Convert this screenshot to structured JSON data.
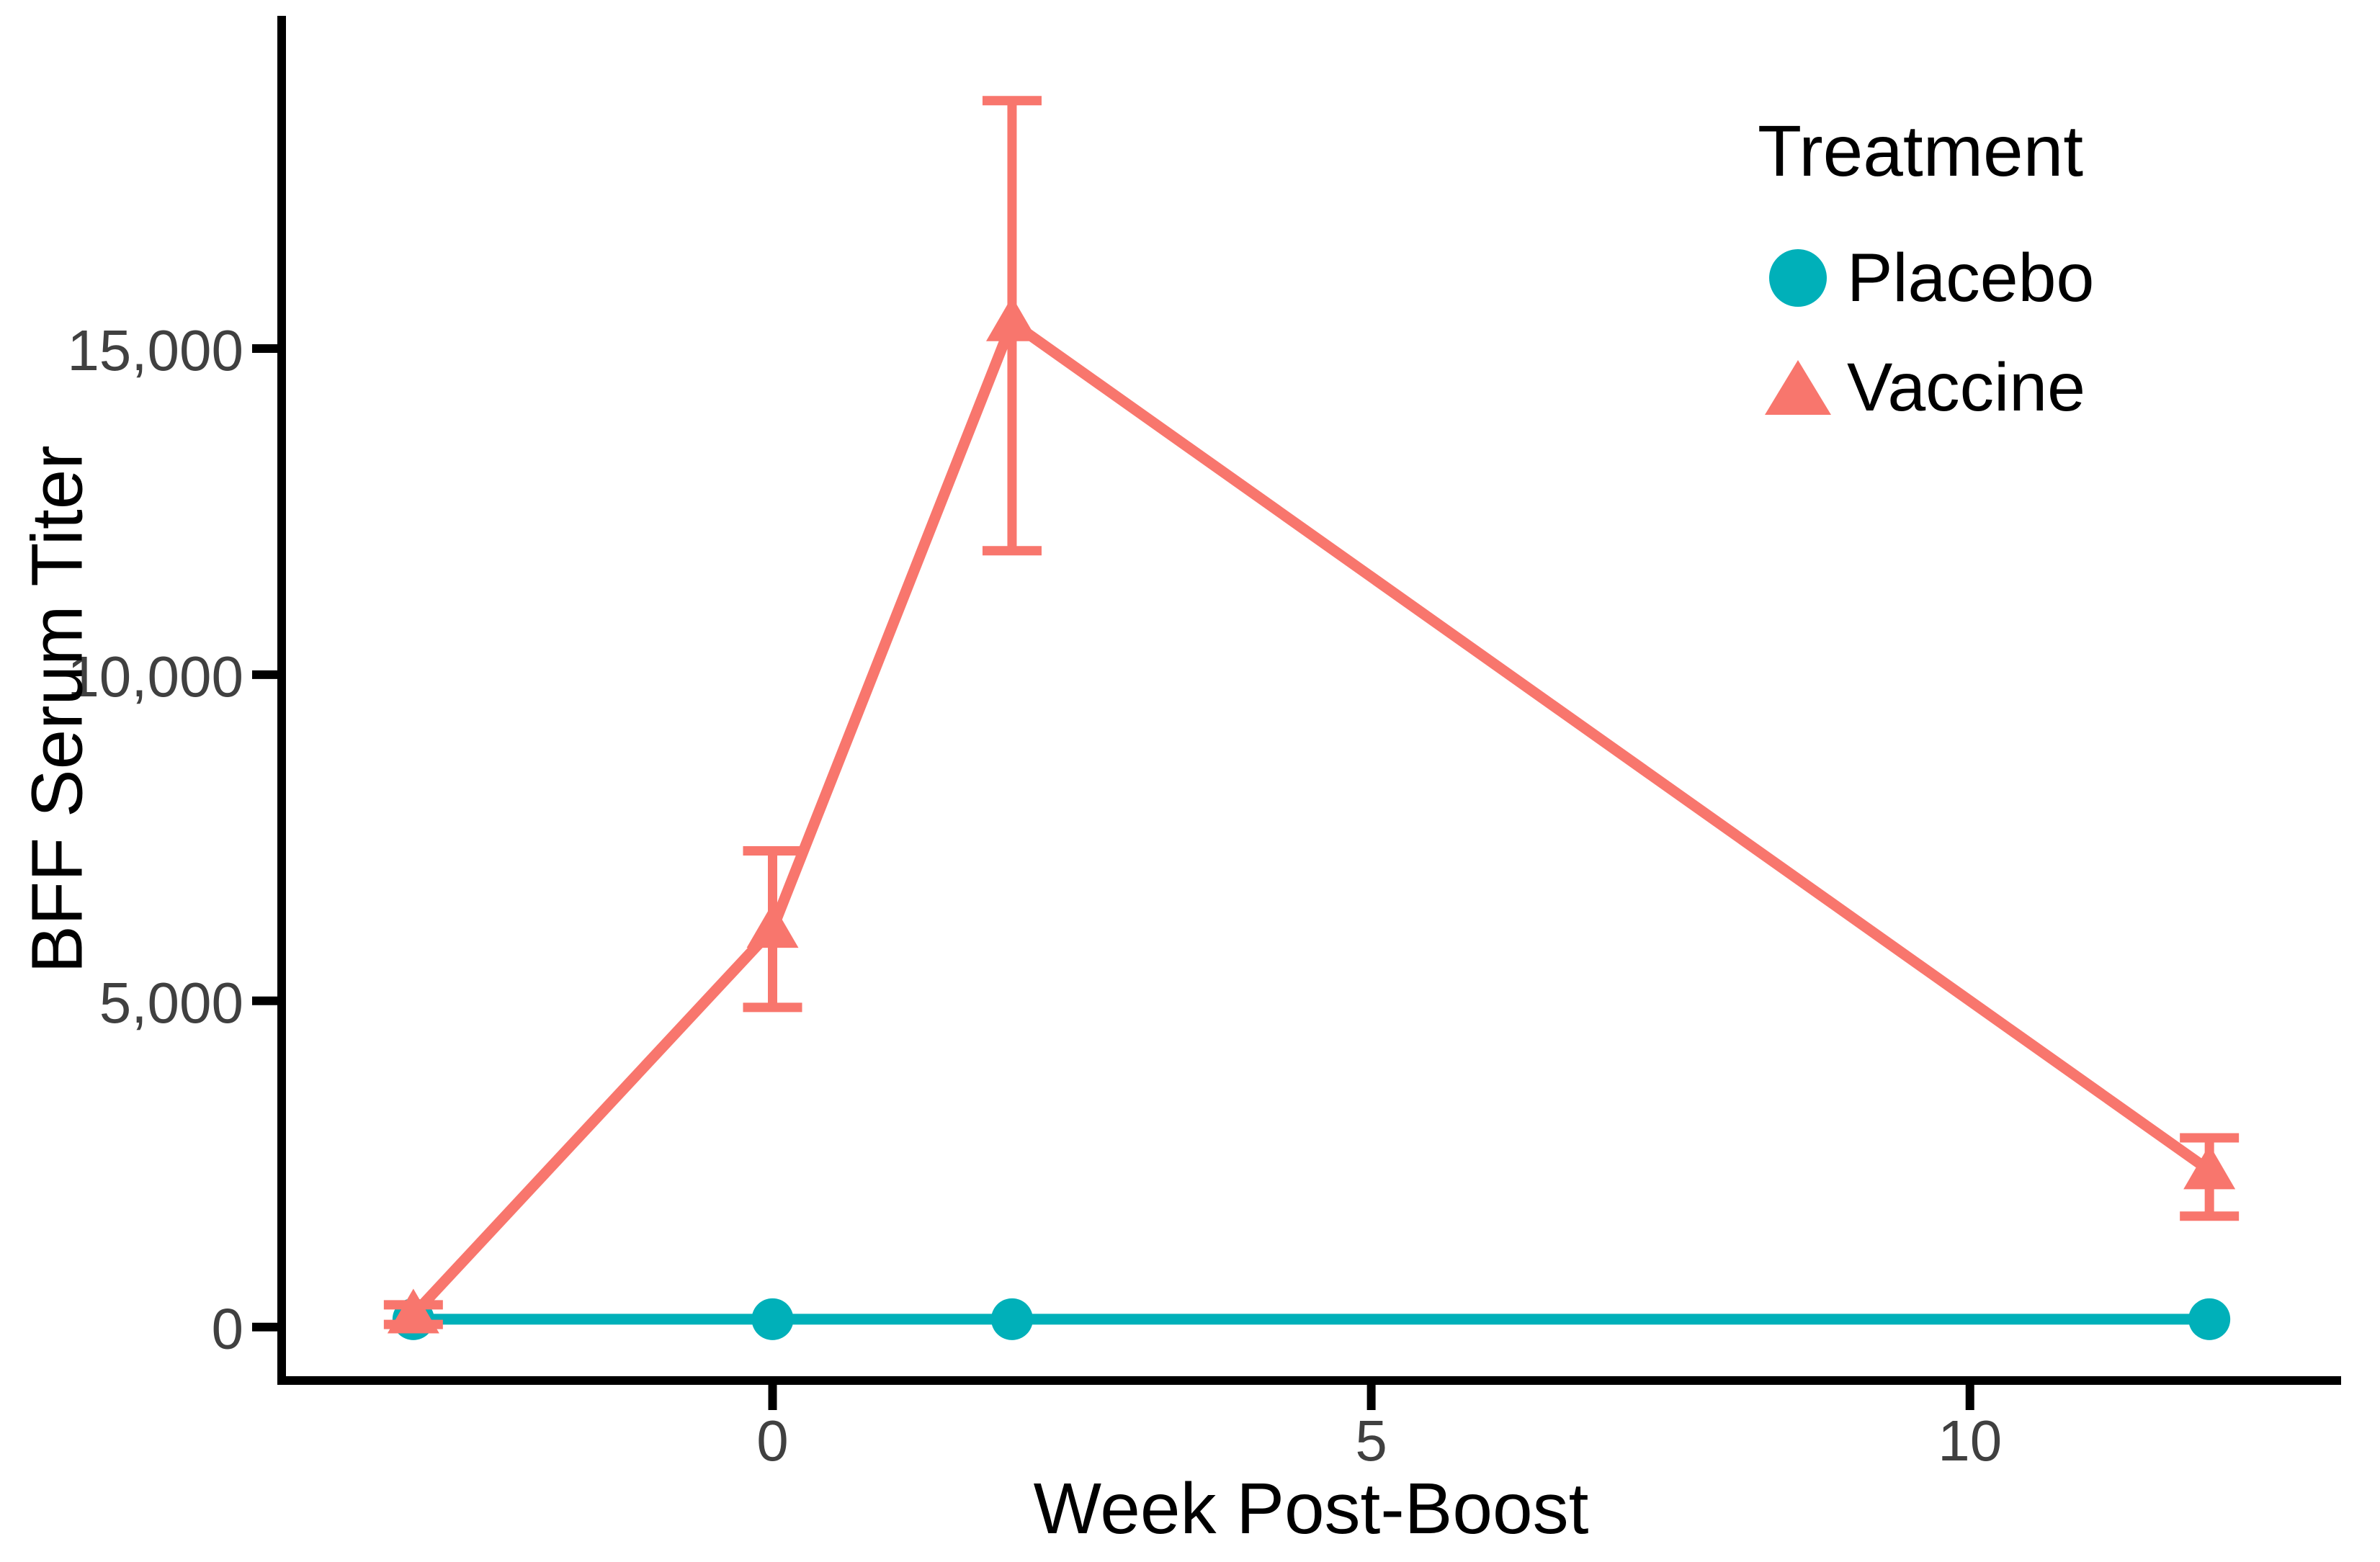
{
  "figure": {
    "background": "#ffffff",
    "axis_color": "#000000",
    "tick_label_color": "#404040"
  },
  "chart_data": {
    "type": "line",
    "title": "",
    "xlabel": "Week Post-Boost",
    "ylabel": "BFF Serum Titer",
    "grid": false,
    "xlim": [
      -4.1,
      13.1
    ],
    "ylim": [
      -820,
      20100
    ],
    "x_ticks": [
      {
        "value": 0,
        "label": "0"
      },
      {
        "value": 5,
        "label": "5"
      },
      {
        "value": 10,
        "label": "10"
      }
    ],
    "y_ticks": [
      {
        "value": 0,
        "label": "0"
      },
      {
        "value": 5000,
        "label": "5,000"
      },
      {
        "value": 10000,
        "label": "10,000"
      },
      {
        "value": 15000,
        "label": "15,000"
      }
    ],
    "legend": {
      "title": "Treatment",
      "position": "top-right"
    },
    "series": [
      {
        "name": "Placebo",
        "color": "#00B0B9",
        "marker": "circle",
        "x": [
          -3,
          0,
          2,
          12
        ],
        "y": [
          120,
          120,
          120,
          120
        ]
      },
      {
        "name": "Vaccine",
        "color": "#F8766D",
        "marker": "triangle",
        "x": [
          -3,
          0,
          2,
          12
        ],
        "y": [
          190,
          6100,
          15400,
          2400
        ],
        "ci_low": [
          40,
          4900,
          11900,
          1700
        ],
        "ci_high": [
          340,
          7300,
          18800,
          2900
        ]
      }
    ]
  }
}
